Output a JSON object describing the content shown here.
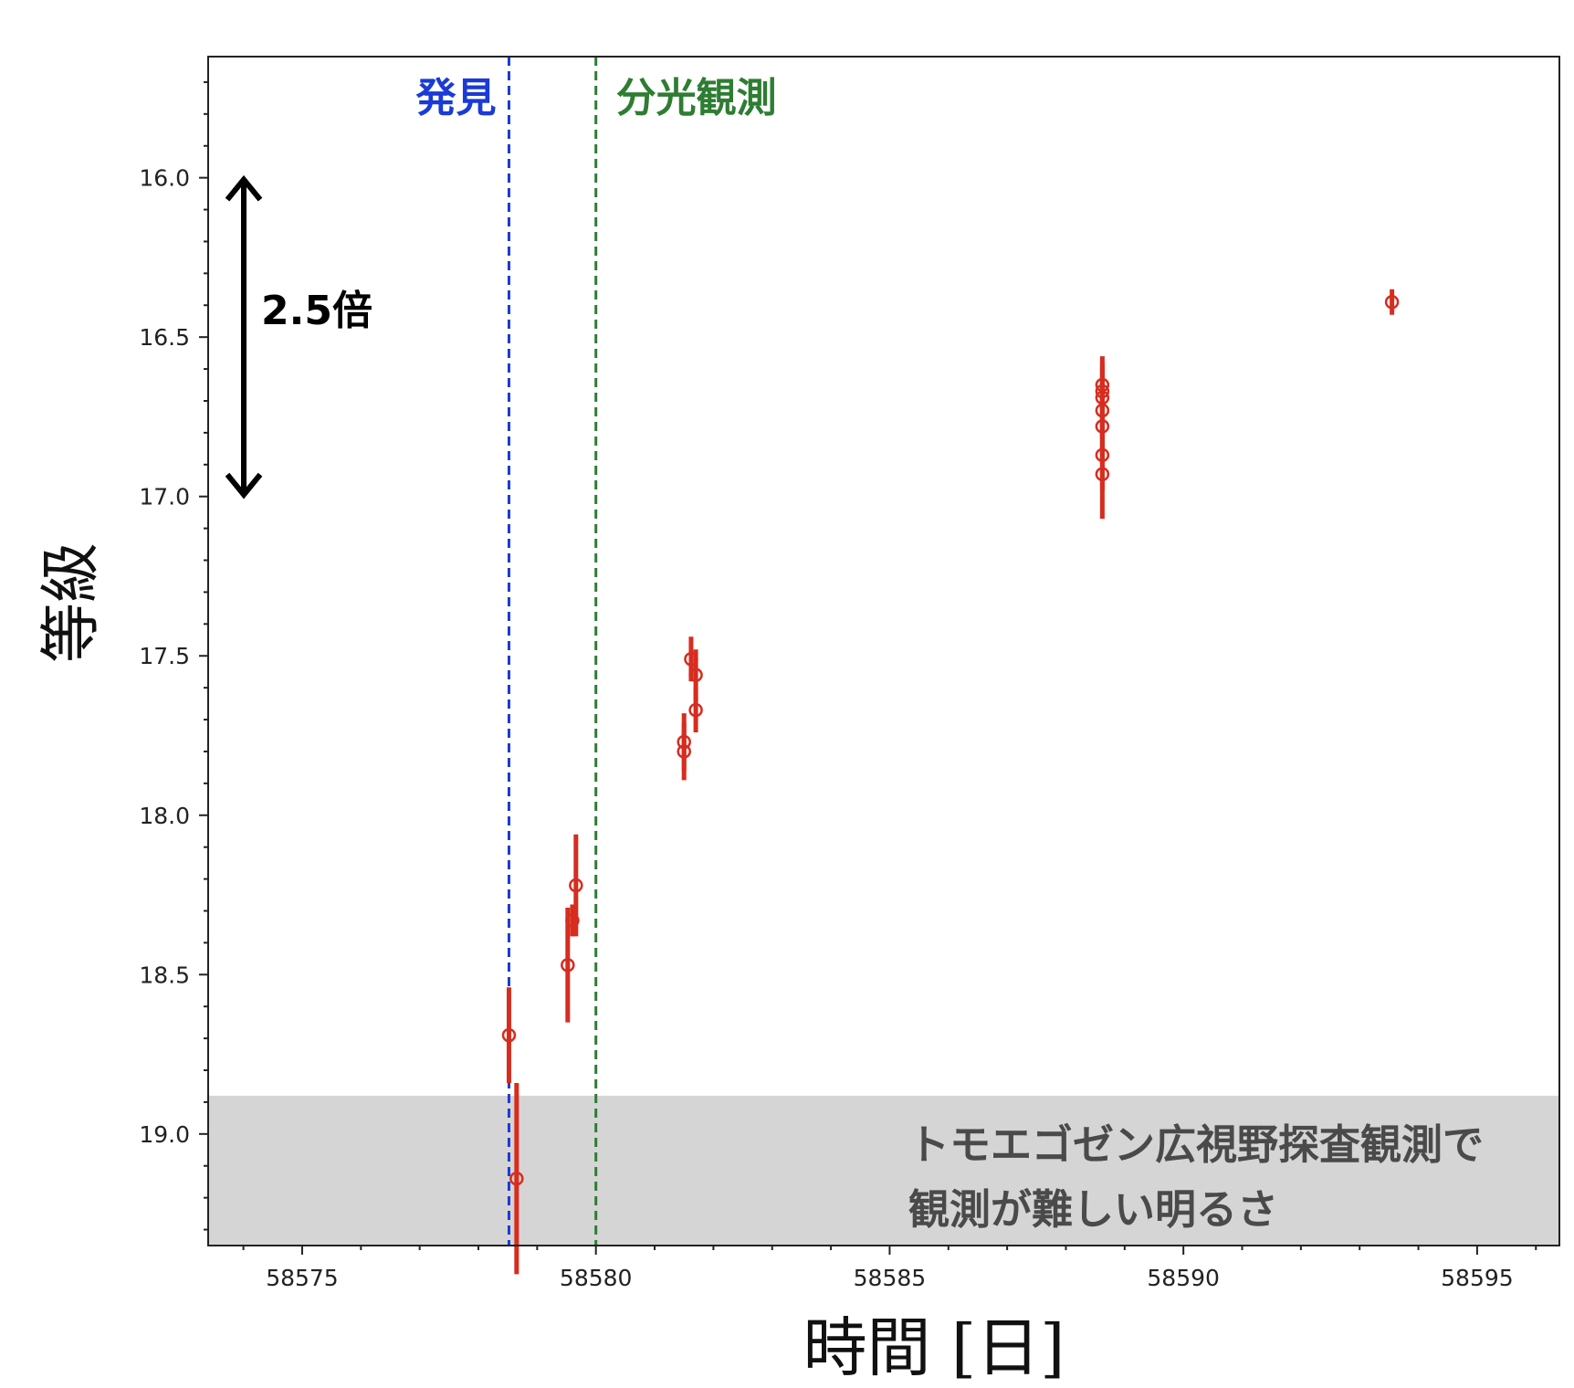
{
  "chart_data": {
    "type": "scatter",
    "title": "",
    "xlabel": "時間 [日]",
    "ylabel": "等級",
    "xlim": [
      58573.4,
      58596.4
    ],
    "ylim": [
      19.35,
      15.62
    ],
    "y_inverted": true,
    "grid": false,
    "x_ticks": [
      58575,
      58580,
      58585,
      58590,
      58595
    ],
    "x_tick_labels": [
      "58575",
      "58580",
      "58585",
      "58590",
      "58595"
    ],
    "y_ticks": [
      16.0,
      16.5,
      17.0,
      17.5,
      18.0,
      18.5,
      19.0
    ],
    "y_tick_labels": [
      "16.0",
      "16.5",
      "17.0",
      "17.5",
      "18.0",
      "18.5",
      "19.0"
    ],
    "series": [
      {
        "color": "#d62d20",
        "points": [
          {
            "x": 58578.52,
            "y": 18.69,
            "err": 0.15
          },
          {
            "x": 58578.65,
            "y": 19.14,
            "err": 0.3
          },
          {
            "x": 58579.52,
            "y": 18.47,
            "err": 0.18
          },
          {
            "x": 58579.6,
            "y": 18.33,
            "err": 0.05
          },
          {
            "x": 58579.66,
            "y": 18.22,
            "err": 0.16
          },
          {
            "x": 58581.5,
            "y": 17.77,
            "err": 0.09
          },
          {
            "x": 58581.5,
            "y": 17.8,
            "err": 0.09
          },
          {
            "x": 58581.62,
            "y": 17.51,
            "err": 0.07
          },
          {
            "x": 58581.7,
            "y": 17.56,
            "err": 0.08
          },
          {
            "x": 58581.7,
            "y": 17.67,
            "err": 0.07
          },
          {
            "x": 58588.62,
            "y": 16.65,
            "err": 0.09
          },
          {
            "x": 58588.62,
            "y": 16.67,
            "err": 0.09
          },
          {
            "x": 58588.62,
            "y": 16.69,
            "err": 0.09
          },
          {
            "x": 58588.62,
            "y": 16.73,
            "err": 0.09
          },
          {
            "x": 58588.62,
            "y": 16.78,
            "err": 0.1
          },
          {
            "x": 58588.62,
            "y": 16.87,
            "err": 0.11
          },
          {
            "x": 58588.62,
            "y": 16.93,
            "err": 0.14
          },
          {
            "x": 58593.55,
            "y": 16.39,
            "err": 0.04
          }
        ]
      }
    ],
    "vlines": [
      {
        "x": 58578.52,
        "label": "発見",
        "color": "#1a3bd6",
        "style": "dashed"
      },
      {
        "x": 58580.0,
        "label": "分光観測",
        "color": "#2e7d32",
        "style": "dashed"
      }
    ],
    "shaded_region": {
      "y_from": 18.88,
      "y_to": 19.35,
      "color": "#d5d5d5",
      "label_line1": "トモエゴゼン広視野探査観測で",
      "label_line2": "観測が難しい明るさ"
    },
    "scale_arrow": {
      "y_from": 16.0,
      "y_to": 17.0,
      "label": "2.5倍"
    }
  }
}
